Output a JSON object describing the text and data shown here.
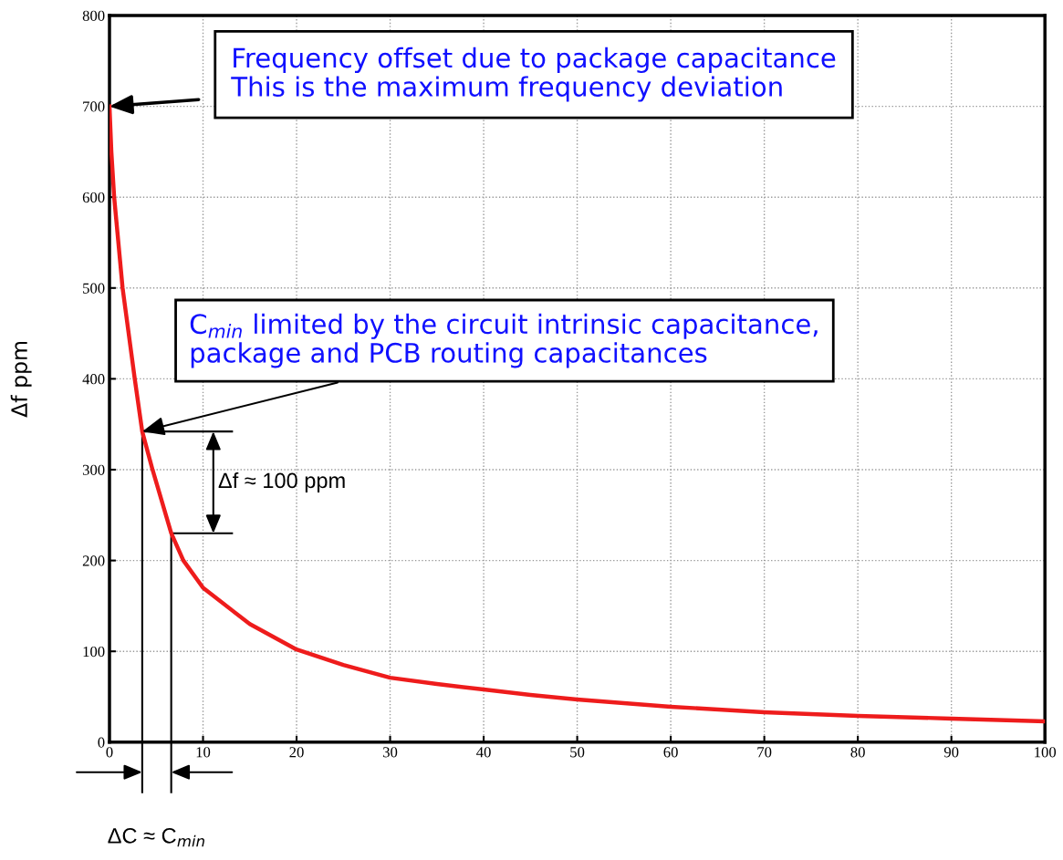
{
  "chart_data": {
    "type": "line",
    "ylabel": "Δf ppm",
    "xlim": [
      0,
      100
    ],
    "xticks": [
      0,
      10,
      20,
      30,
      40,
      50,
      60,
      70,
      80,
      90,
      100
    ],
    "ylim": [
      0,
      800
    ],
    "yticks": [
      0,
      100,
      200,
      300,
      400,
      500,
      600,
      700,
      800
    ],
    "grid": true,
    "marker": "none",
    "line_style": "solid",
    "series": [
      {
        "color": "#ee1c1c",
        "x": [
          0,
          0.2,
          0.5,
          1.4,
          2.7,
          3.5,
          4.6,
          6.6,
          7.9,
          10,
          15,
          20,
          25,
          30,
          35,
          40,
          45,
          50,
          60,
          70,
          80,
          90,
          100
        ],
        "values": [
          700,
          650,
          600,
          500,
          400,
          342,
          300,
          230,
          200,
          170,
          130,
          102,
          85,
          71,
          64,
          58,
          52,
          47,
          39,
          33,
          29,
          26,
          23
        ]
      }
    ],
    "annotations": [
      {
        "text": "Frequency offset due to package capacitance\nThis is the maximum frequency deviation",
        "x": 0,
        "y": 700
      },
      {
        "text": "C$_{min}$ limited by the circuit intrinsic capacitance,\npackage and PCB routing capacitances",
        "x": 3.5,
        "y": 342
      },
      {
        "text": "Δf ≈ 100 ppm",
        "x": 6.6,
        "y": 230
      },
      "ΔC ≈ C$_{min}$"
    ]
  }
}
